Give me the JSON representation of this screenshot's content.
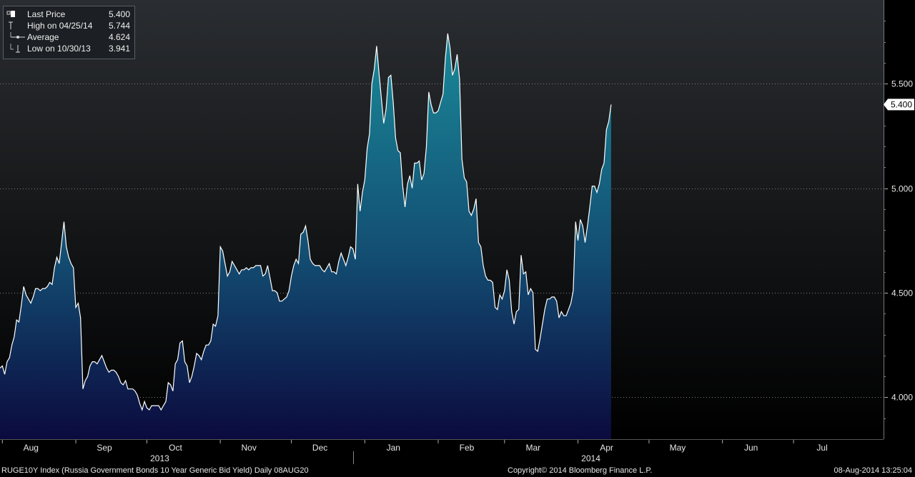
{
  "chart_data": {
    "type": "area",
    "yticks": [
      4.0,
      4.5,
      5.0,
      5.5
    ],
    "ytick_labels": [
      "4.000",
      "4.500",
      "5.000",
      "5.500"
    ],
    "ylim": [
      3.8,
      5.9
    ],
    "months": [
      {
        "label": "Aug",
        "t": 1.0
      },
      {
        "label": "Sep",
        "t": 32.0
      },
      {
        "label": "Oct",
        "t": 62.0
      },
      {
        "label": "Nov",
        "t": 93.0
      },
      {
        "label": "Dec",
        "t": 123.0
      },
      {
        "label": "Jan",
        "t": 154.0
      },
      {
        "label": "Feb",
        "t": 185.0
      },
      {
        "label": "Mar",
        "t": 213.0
      },
      {
        "label": "Apr",
        "t": 244.0
      },
      {
        "label": "May",
        "t": 274.0
      },
      {
        "label": "Jun",
        "t": 305.0
      },
      {
        "label": "Jul",
        "t": 335.0
      }
    ],
    "years": [
      {
        "label": "2013",
        "t": 62.0
      },
      {
        "label": "2014",
        "t": 244.0
      }
    ],
    "x_start": 0.0,
    "x_end": 373.0,
    "points": [
      [
        0,
        4.14
      ],
      [
        1,
        4.15
      ],
      [
        2,
        4.11
      ],
      [
        3,
        4.17
      ],
      [
        4,
        4.19
      ],
      [
        5,
        4.25
      ],
      [
        6,
        4.29
      ],
      [
        7,
        4.37
      ],
      [
        8,
        4.36
      ],
      [
        9,
        4.44
      ],
      [
        10,
        4.53
      ],
      [
        11,
        4.49
      ],
      [
        12,
        4.47
      ],
      [
        13,
        4.45
      ],
      [
        14,
        4.48
      ],
      [
        15,
        4.52
      ],
      [
        16,
        4.52
      ],
      [
        17,
        4.51
      ],
      [
        18,
        4.52
      ],
      [
        19,
        4.52
      ],
      [
        20,
        4.53
      ],
      [
        21,
        4.55
      ],
      [
        22,
        4.54
      ],
      [
        23,
        4.62
      ],
      [
        24,
        4.67
      ],
      [
        25,
        4.64
      ],
      [
        26,
        4.74
      ],
      [
        27,
        4.84
      ],
      [
        28,
        4.72
      ],
      [
        29,
        4.67
      ],
      [
        30,
        4.64
      ],
      [
        31,
        4.62
      ],
      [
        32,
        4.43
      ],
      [
        33,
        4.45
      ],
      [
        34,
        4.38
      ],
      [
        35,
        4.04
      ],
      [
        36,
        4.08
      ],
      [
        37,
        4.1
      ],
      [
        38,
        4.15
      ],
      [
        39,
        4.17
      ],
      [
        40,
        4.17
      ],
      [
        41,
        4.16
      ],
      [
        42,
        4.18
      ],
      [
        43,
        4.2
      ],
      [
        44,
        4.17
      ],
      [
        45,
        4.14
      ],
      [
        46,
        4.12
      ],
      [
        47,
        4.13
      ],
      [
        48,
        4.13
      ],
      [
        49,
        4.12
      ],
      [
        50,
        4.1
      ],
      [
        51,
        4.07
      ],
      [
        52,
        4.06
      ],
      [
        53,
        4.08
      ],
      [
        54,
        4.04
      ],
      [
        55,
        4.04
      ],
      [
        56,
        4.04
      ],
      [
        57,
        4.03
      ],
      [
        58,
        4.01
      ],
      [
        59,
        3.97
      ],
      [
        60,
        3.94
      ],
      [
        61,
        3.98
      ],
      [
        62,
        3.95
      ],
      [
        63,
        3.94
      ],
      [
        64,
        3.96
      ],
      [
        65,
        3.96
      ],
      [
        66,
        3.96
      ],
      [
        67,
        3.96
      ],
      [
        68,
        3.94
      ],
      [
        69,
        3.96
      ],
      [
        70,
        3.98
      ],
      [
        71,
        4.07
      ],
      [
        72,
        4.06
      ],
      [
        73,
        4.03
      ],
      [
        74,
        4.16
      ],
      [
        75,
        4.18
      ],
      [
        76,
        4.26
      ],
      [
        77,
        4.27
      ],
      [
        78,
        4.17
      ],
      [
        79,
        4.15
      ],
      [
        80,
        4.07
      ],
      [
        81,
        4.1
      ],
      [
        82,
        4.15
      ],
      [
        83,
        4.21
      ],
      [
        84,
        4.2
      ],
      [
        85,
        4.18
      ],
      [
        86,
        4.22
      ],
      [
        87,
        4.25
      ],
      [
        88,
        4.25
      ],
      [
        89,
        4.27
      ],
      [
        90,
        4.35
      ],
      [
        91,
        4.34
      ],
      [
        92,
        4.39
      ],
      [
        93,
        4.72
      ],
      [
        94,
        4.7
      ],
      [
        95,
        4.64
      ],
      [
        96,
        4.58
      ],
      [
        97,
        4.6
      ],
      [
        98,
        4.65
      ],
      [
        99,
        4.63
      ],
      [
        100,
        4.61
      ],
      [
        101,
        4.59
      ],
      [
        102,
        4.61
      ],
      [
        103,
        4.61
      ],
      [
        104,
        4.62
      ],
      [
        105,
        4.61
      ],
      [
        106,
        4.62
      ],
      [
        107,
        4.62
      ],
      [
        108,
        4.63
      ],
      [
        109,
        4.63
      ],
      [
        110,
        4.63
      ],
      [
        111,
        4.58
      ],
      [
        112,
        4.59
      ],
      [
        113,
        4.63
      ],
      [
        114,
        4.57
      ],
      [
        115,
        4.51
      ],
      [
        116,
        4.51
      ],
      [
        117,
        4.5
      ],
      [
        118,
        4.46
      ],
      [
        119,
        4.46
      ],
      [
        120,
        4.47
      ],
      [
        121,
        4.48
      ],
      [
        122,
        4.51
      ],
      [
        123,
        4.58
      ],
      [
        124,
        4.63
      ],
      [
        125,
        4.66
      ],
      [
        126,
        4.64
      ],
      [
        127,
        4.78
      ],
      [
        128,
        4.79
      ],
      [
        129,
        4.82
      ],
      [
        130,
        4.75
      ],
      [
        131,
        4.66
      ],
      [
        132,
        4.64
      ],
      [
        133,
        4.63
      ],
      [
        134,
        4.63
      ],
      [
        135,
        4.63
      ],
      [
        136,
        4.61
      ],
      [
        137,
        4.6
      ],
      [
        138,
        4.62
      ],
      [
        139,
        4.64
      ],
      [
        140,
        4.6
      ],
      [
        141,
        4.6
      ],
      [
        142,
        4.59
      ],
      [
        143,
        4.65
      ],
      [
        144,
        4.69
      ],
      [
        145,
        4.66
      ],
      [
        146,
        4.63
      ],
      [
        147,
        4.67
      ],
      [
        148,
        4.72
      ],
      [
        149,
        4.71
      ],
      [
        150,
        4.66
      ],
      [
        151,
        5.02
      ],
      [
        152,
        4.89
      ],
      [
        153,
        4.98
      ],
      [
        154,
        5.04
      ],
      [
        155,
        5.19
      ],
      [
        156,
        5.26
      ],
      [
        157,
        5.5
      ],
      [
        158,
        5.57
      ],
      [
        159,
        5.68
      ],
      [
        160,
        5.55
      ],
      [
        161,
        5.43
      ],
      [
        162,
        5.31
      ],
      [
        163,
        5.38
      ],
      [
        164,
        5.53
      ],
      [
        165,
        5.54
      ],
      [
        166,
        5.41
      ],
      [
        167,
        5.24
      ],
      [
        168,
        5.18
      ],
      [
        169,
        5.17
      ],
      [
        170,
        5.01
      ],
      [
        171,
        4.91
      ],
      [
        172,
        5.02
      ],
      [
        173,
        5.06
      ],
      [
        174,
        5.0
      ],
      [
        175,
        5.12
      ],
      [
        176,
        5.12
      ],
      [
        177,
        5.13
      ],
      [
        178,
        5.04
      ],
      [
        179,
        5.07
      ],
      [
        180,
        5.2
      ],
      [
        181,
        5.46
      ],
      [
        182,
        5.4
      ],
      [
        183,
        5.36
      ],
      [
        184,
        5.36
      ],
      [
        185,
        5.37
      ],
      [
        186,
        5.41
      ],
      [
        187,
        5.45
      ],
      [
        188,
        5.62
      ],
      [
        189,
        5.74
      ],
      [
        190,
        5.67
      ],
      [
        191,
        5.54
      ],
      [
        192,
        5.57
      ],
      [
        193,
        5.64
      ],
      [
        194,
        5.52
      ],
      [
        195,
        5.14
      ],
      [
        196,
        5.05
      ],
      [
        197,
        5.03
      ],
      [
        198,
        4.89
      ],
      [
        199,
        4.87
      ],
      [
        200,
        4.9
      ],
      [
        201,
        4.95
      ],
      [
        202,
        4.74
      ],
      [
        203,
        4.72
      ],
      [
        204,
        4.63
      ],
      [
        205,
        4.58
      ],
      [
        206,
        4.56
      ],
      [
        207,
        4.56
      ],
      [
        208,
        4.55
      ],
      [
        209,
        4.43
      ],
      [
        210,
        4.42
      ],
      [
        211,
        4.49
      ],
      [
        212,
        4.47
      ],
      [
        213,
        4.51
      ],
      [
        214,
        4.61
      ],
      [
        215,
        4.56
      ],
      [
        216,
        4.41
      ],
      [
        217,
        4.35
      ],
      [
        218,
        4.41
      ],
      [
        219,
        4.42
      ],
      [
        220,
        4.68
      ],
      [
        221,
        4.59
      ],
      [
        222,
        4.6
      ],
      [
        223,
        4.49
      ],
      [
        224,
        4.52
      ],
      [
        225,
        4.5
      ],
      [
        226,
        4.23
      ],
      [
        227,
        4.22
      ],
      [
        228,
        4.28
      ],
      [
        229,
        4.35
      ],
      [
        230,
        4.42
      ],
      [
        231,
        4.47
      ],
      [
        232,
        4.47
      ],
      [
        233,
        4.48
      ],
      [
        234,
        4.48
      ],
      [
        235,
        4.46
      ],
      [
        236,
        4.38
      ],
      [
        237,
        4.41
      ],
      [
        238,
        4.39
      ],
      [
        239,
        4.39
      ],
      [
        240,
        4.42
      ],
      [
        241,
        4.45
      ],
      [
        242,
        4.51
      ],
      [
        243,
        4.84
      ],
      [
        244,
        4.75
      ],
      [
        245,
        4.85
      ],
      [
        246,
        4.82
      ],
      [
        247,
        4.74
      ],
      [
        248,
        4.82
      ],
      [
        249,
        4.91
      ],
      [
        250,
        5.01
      ],
      [
        251,
        5.01
      ],
      [
        252,
        4.98
      ],
      [
        253,
        5.02
      ],
      [
        254,
        5.09
      ],
      [
        255,
        5.12
      ],
      [
        256,
        5.28
      ],
      [
        257,
        5.32
      ],
      [
        258,
        5.4
      ]
    ]
  },
  "legend": {
    "items": [
      {
        "icon": "square-icon",
        "label": "Last Price",
        "value": "5.400"
      },
      {
        "icon": "high-marker-icon",
        "label": "High on 04/25/14",
        "value": "5.744"
      },
      {
        "icon": "average-line-icon",
        "label": "Average",
        "value": "4.624"
      },
      {
        "icon": "low-marker-icon",
        "label": "Low on 10/30/13",
        "value": "3.941"
      }
    ]
  },
  "last_price_label": "5.400",
  "footer": {
    "ticker": "RUGE10Y Index (Russia Government Bonds 10 Year Generic Bid Yield)  Daily 08AUG20",
    "copyright": "Copyright© 2014 Bloomberg Finance L.P.",
    "timestamp": "08-Aug-2014 13:25:04"
  },
  "colors": {
    "area_top": "#1a8a99",
    "area_bottom": "#0b0a3e",
    "bg_top": "#2a2d31",
    "bg_bottom": "#000000",
    "line": "#ffffff"
  }
}
